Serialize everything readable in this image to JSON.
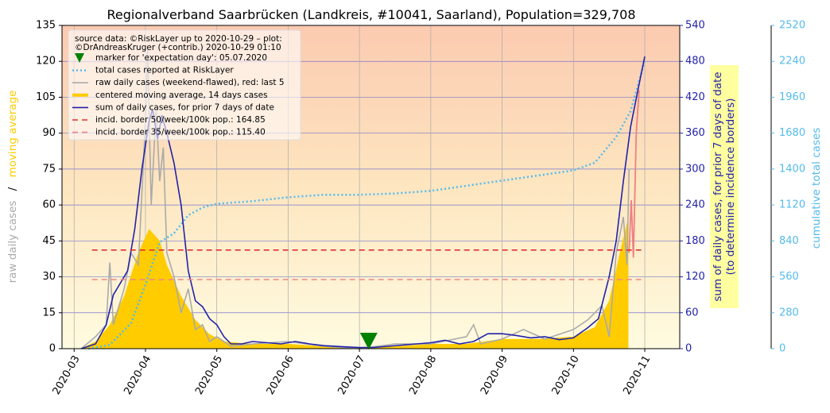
{
  "chart_data": {
    "type": "line",
    "title": "Regionalverband Saarbrücken (Landkreis, #10041, Saarland), Population=329,708",
    "ylabel_parts": [
      "raw daily cases",
      "/",
      "moving average"
    ],
    "y2label": [
      "sum of daily cases, for prior 7 days of date",
      "(to determine incidence borders)"
    ],
    "y3label": "cumulative total cases",
    "source": [
      "source data: ©RiskLayer up to 2020-10-29 – plot:",
      "©DrAndreasKruger (+contrib.) 2020-10-29 01:10"
    ],
    "xlim": [
      2.83,
      11.49
    ],
    "xticks": [
      {
        "value": 3,
        "label": "2020-03"
      },
      {
        "value": 4,
        "label": "2020-04"
      },
      {
        "value": 5,
        "label": "2020-05"
      },
      {
        "value": 6,
        "label": "2020-06"
      },
      {
        "value": 7,
        "label": "2020-07"
      },
      {
        "value": 8,
        "label": "2020-08"
      },
      {
        "value": 9,
        "label": "2020-09"
      },
      {
        "value": 10,
        "label": "2020-10"
      },
      {
        "value": 11,
        "label": "2020-11"
      }
    ],
    "ylim": [
      0,
      135
    ],
    "yticks": [
      0,
      15,
      30,
      45,
      60,
      75,
      90,
      105,
      120,
      135
    ],
    "y2lim": [
      0,
      540
    ],
    "y2ticks": [
      0,
      60,
      120,
      180,
      240,
      300,
      360,
      420,
      480,
      540
    ],
    "y3lim": [
      0,
      2520
    ],
    "y3ticks": [
      0,
      280,
      560,
      840,
      1120,
      1400,
      1680,
      1960,
      2240,
      2520
    ],
    "grid": true,
    "marker": {
      "name": "marker for 'expectation day': 05.07.2020",
      "color": "#008000",
      "x": 7.13,
      "y": 3
    },
    "series": [
      {
        "name": "total cases reported at RiskLayer",
        "color": "#55bbee",
        "style": "dotted",
        "axis": "y3",
        "x": [
          3.2,
          3.5,
          3.8,
          4.0,
          4.2,
          4.4,
          4.6,
          4.8,
          5.0,
          5.5,
          6.0,
          6.5,
          7.0,
          7.5,
          8.0,
          8.5,
          9.0,
          9.5,
          10.0,
          10.3,
          10.6,
          10.8,
          10.9,
          11.0
        ],
        "values": [
          0,
          30,
          200,
          500,
          830,
          900,
          1040,
          1100,
          1130,
          1150,
          1180,
          1200,
          1200,
          1210,
          1230,
          1270,
          1310,
          1350,
          1390,
          1450,
          1650,
          1850,
          2050,
          2250
        ]
      },
      {
        "name": "raw daily cases (weekend-flawed), red: last 5",
        "color": "#aaaaaa",
        "style": "solid",
        "axis": "y",
        "x": [
          3.1,
          3.3,
          3.45,
          3.5,
          3.55,
          3.7,
          3.8,
          3.9,
          4.0,
          4.03,
          4.08,
          4.15,
          4.2,
          4.25,
          4.3,
          4.4,
          4.5,
          4.6,
          4.7,
          4.8,
          4.9,
          5.0,
          5.2,
          5.5,
          6.0,
          6.5,
          7.0,
          7.5,
          8.0,
          8.5,
          8.6,
          8.7,
          9.0,
          9.3,
          9.6,
          10.0,
          10.2,
          10.4,
          10.5,
          10.6,
          10.7,
          10.75,
          10.78
        ],
        "values": [
          0,
          5,
          10,
          36,
          10,
          25,
          40,
          35,
          95,
          125,
          60,
          100,
          70,
          84,
          40,
          30,
          15,
          25,
          8,
          10,
          3,
          5,
          1,
          2,
          3,
          1,
          0,
          2,
          2,
          5,
          10,
          2,
          4,
          8,
          4,
          8,
          12,
          18,
          5,
          40,
          55,
          35,
          75
        ],
        "highlight_color": "#f08080",
        "highlight_x": [
          10.78,
          10.81,
          10.84,
          10.88,
          10.92
        ],
        "highlight_values": [
          40,
          62,
          38,
          90,
          108
        ]
      },
      {
        "name": "centered moving average, 14 days cases",
        "color": "#ffcc00",
        "style": "area",
        "axis": "y",
        "x": [
          3.1,
          3.3,
          3.5,
          3.7,
          3.9,
          4.05,
          4.2,
          4.3,
          4.5,
          4.7,
          4.9,
          5.1,
          5.5,
          6.0,
          6.5,
          7.0,
          7.5,
          8.0,
          8.5,
          9.0,
          9.5,
          10.0,
          10.3,
          10.5,
          10.65,
          10.77
        ],
        "values": [
          0,
          3,
          10,
          22,
          40,
          50,
          45,
          35,
          22,
          12,
          6,
          3,
          2,
          2,
          1,
          0.5,
          1,
          2,
          2,
          4,
          4,
          5,
          9,
          20,
          40,
          55
        ]
      },
      {
        "name": "sum of daily cases, for prior 7 days of date",
        "color": "#2222aa",
        "style": "solid",
        "axis": "y2",
        "x": [
          3.1,
          3.3,
          3.45,
          3.55,
          3.65,
          3.75,
          3.85,
          3.95,
          4.05,
          4.1,
          4.17,
          4.23,
          4.3,
          4.4,
          4.5,
          4.6,
          4.7,
          4.8,
          4.9,
          5.0,
          5.1,
          5.2,
          5.35,
          5.5,
          5.7,
          5.9,
          6.1,
          6.3,
          6.5,
          6.8,
          7.0,
          7.2,
          7.4,
          7.6,
          7.8,
          8.0,
          8.2,
          8.4,
          8.6,
          8.8,
          9.0,
          9.2,
          9.4,
          9.6,
          9.8,
          10.0,
          10.2,
          10.35,
          10.5,
          10.6,
          10.7,
          10.8,
          10.9,
          11.0
        ],
        "values": [
          0,
          8,
          40,
          90,
          110,
          130,
          200,
          300,
          380,
          400,
          350,
          390,
          360,
          310,
          240,
          130,
          80,
          70,
          50,
          40,
          20,
          8,
          8,
          12,
          10,
          8,
          12,
          8,
          5,
          3,
          2,
          2,
          4,
          6,
          8,
          10,
          14,
          8,
          12,
          25,
          25,
          22,
          18,
          20,
          15,
          18,
          35,
          50,
          120,
          180,
          280,
          370,
          430,
          488
        ]
      },
      {
        "name": "incid. border 50/week/100k pop.: 164.85",
        "color": "#dd3333",
        "style": "dashed",
        "axis": "y2",
        "x": [
          3.25,
          10.95
        ],
        "values": [
          164.85,
          164.85
        ]
      },
      {
        "name": "incid. border 35/week/100k pop.: 115.40",
        "color": "#f08888",
        "style": "dashed",
        "axis": "y2",
        "x": [
          3.25,
          10.95
        ],
        "values": [
          115.4,
          115.4
        ]
      }
    ]
  }
}
